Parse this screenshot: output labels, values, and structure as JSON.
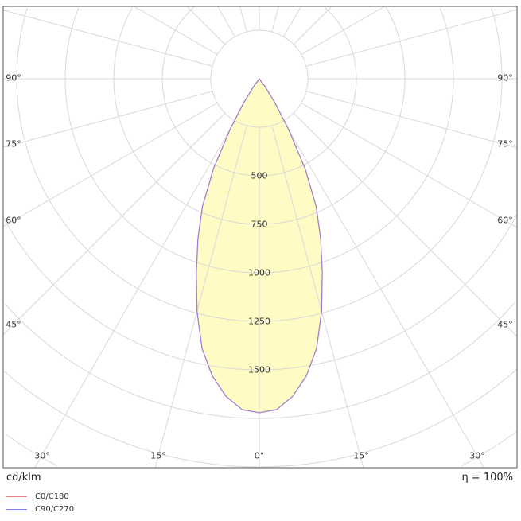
{
  "chart_data": {
    "type": "polar",
    "unit_label": "cd/klm",
    "efficiency_label": "η = 100%",
    "radial_ticks": [
      "500",
      "750",
      "1000",
      "1250",
      "1500"
    ],
    "radial_tick_values": [
      500,
      750,
      1000,
      1250,
      1500
    ],
    "ring_step": 250,
    "angle_step_deg": 15,
    "angle_labels": {
      "left": [
        "90°",
        "75°",
        "60°",
        "45°"
      ],
      "right": [
        "90°",
        "75°",
        "60°",
        "45°"
      ],
      "bottom": [
        "30°",
        "15°",
        "0°",
        "15°",
        "30°"
      ]
    },
    "grid": true,
    "fill_color": "#fffbc4",
    "series": [
      {
        "name": "C0/C180",
        "color": "#f08080",
        "angles": [
          0,
          3,
          6,
          9,
          12,
          15,
          18,
          21,
          24,
          27,
          30,
          33,
          36,
          40
        ],
        "values": [
          1721,
          1707,
          1645,
          1550,
          1420,
          1240,
          1050,
          882,
          720,
          520,
          300,
          150,
          50,
          0
        ]
      },
      {
        "name": "C90/C270",
        "color": "#8080f0",
        "angles": [
          0,
          3,
          6,
          9,
          12,
          15,
          18,
          21,
          24,
          27,
          30,
          33,
          36,
          40
        ],
        "values": [
          1721,
          1707,
          1645,
          1550,
          1420,
          1240,
          1050,
          882,
          720,
          520,
          300,
          150,
          50,
          0
        ]
      }
    ],
    "legend_placement": "bottom-left"
  }
}
